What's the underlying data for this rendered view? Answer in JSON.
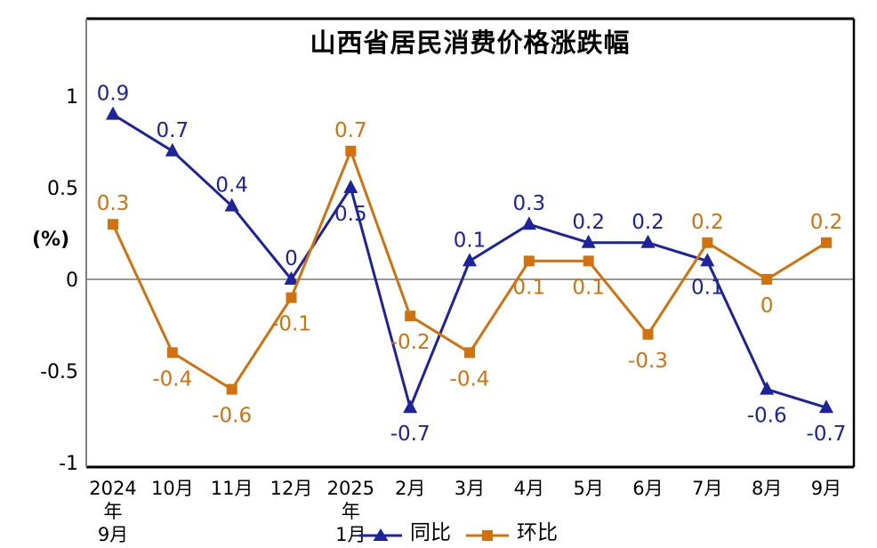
{
  "chart_data": {
    "type": "line",
    "title": "山西省居民消费价格涨跌幅",
    "ylabel": "(%)",
    "categories": [
      "2024年9月",
      "10月",
      "11月",
      "12月",
      "2025年1月",
      "2月",
      "3月",
      "4月",
      "5月",
      "6月",
      "7月",
      "8月",
      "9月"
    ],
    "category_tick_lines": [
      [
        "2024",
        "年",
        "9月"
      ],
      [
        "10月"
      ],
      [
        "11月"
      ],
      [
        "12月"
      ],
      [
        "2025",
        "年",
        "1月"
      ],
      [
        "2月"
      ],
      [
        "3月"
      ],
      [
        "4月"
      ],
      [
        "5月"
      ],
      [
        "6月"
      ],
      [
        "7月"
      ],
      [
        "8月"
      ],
      [
        "9月"
      ]
    ],
    "y_ticks": [
      1,
      0.5,
      0,
      -0.5,
      -1
    ],
    "y_tick_labels": [
      "1",
      "0.5",
      "0",
      "-0.5",
      "-1"
    ],
    "ylim": [
      -1.05,
      1.45
    ],
    "grid": "zero-line-only",
    "legend_position": "bottom-center",
    "series": [
      {
        "name": "同比",
        "marker": "triangle",
        "color": "#1C239C",
        "values": [
          0.9,
          0.7,
          0.4,
          0,
          0.5,
          -0.7,
          0.1,
          0.3,
          0.2,
          0.2,
          0.1,
          -0.6,
          -0.7
        ],
        "labels": [
          "0.9",
          "0.7",
          "0.4",
          "0",
          "0.5",
          "-0.7",
          "0.1",
          "0.3",
          "0.2",
          "0.2",
          "0.1",
          "-0.6",
          "-0.7"
        ],
        "label_sides": [
          "above",
          "above",
          "above",
          "above",
          "below",
          "below",
          "above",
          "above",
          "above",
          "above",
          "below",
          "below",
          "below"
        ]
      },
      {
        "name": "环比",
        "marker": "square",
        "color": "#D2720D",
        "values": [
          0.3,
          -0.4,
          -0.6,
          -0.1,
          0.7,
          -0.2,
          -0.4,
          0.1,
          0.1,
          -0.3,
          0.2,
          0,
          0.2
        ],
        "labels": [
          "0.3",
          "-0.4",
          "-0.6",
          "-0.1",
          "0.7",
          "-0.2",
          "-0.4",
          "0.1",
          "0.1",
          "-0.3",
          "0.2",
          "0",
          "0.2"
        ],
        "label_sides": [
          "above",
          "below",
          "below",
          "below",
          "above",
          "below",
          "below",
          "below",
          "below",
          "below",
          "above",
          "below",
          "above"
        ]
      }
    ],
    "colors": {
      "frame": "#000000",
      "axis_left": "#808080",
      "zero_line": "#8a8a8a",
      "text": "#000000"
    }
  }
}
